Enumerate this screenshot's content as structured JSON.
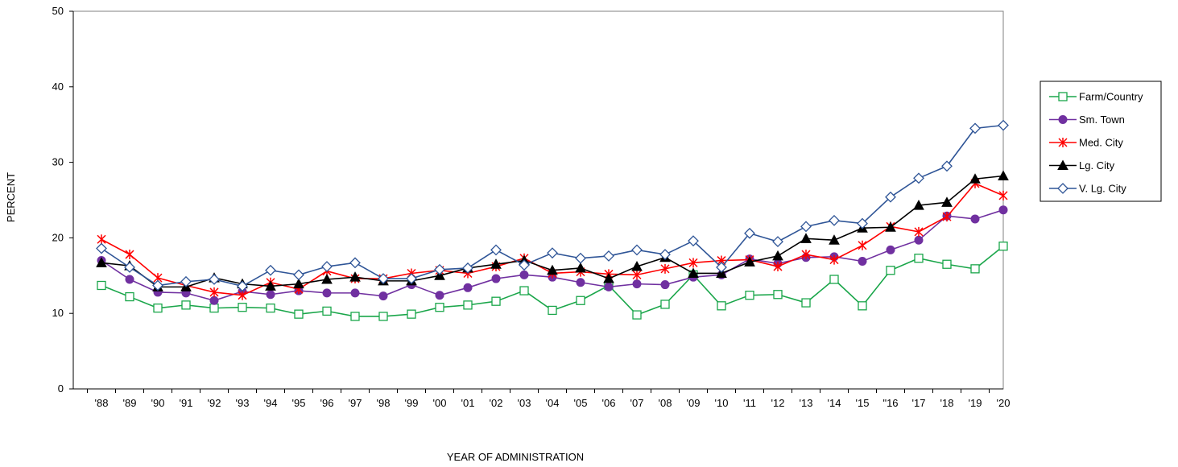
{
  "chart_data": {
    "type": "line",
    "title": "",
    "xlabel": "YEAR OF ADMINISTRATION",
    "ylabel": "PERCENT",
    "ylim": [
      0,
      50
    ],
    "yticks": [
      0,
      10,
      20,
      30,
      40,
      50
    ],
    "grid": false,
    "legend_position": "right",
    "categories": [
      "'88",
      "'89",
      "'90",
      "'91",
      "'92",
      "'93",
      "'94",
      "'95",
      "'96",
      "'97",
      "'98",
      "'99",
      "'00",
      "'01",
      "'02",
      "'03",
      "'04",
      "'05",
      "'06",
      "'07",
      "'08",
      "'09",
      "'10",
      "'11",
      "'12",
      "'13",
      "'14",
      "'15",
      "\"16",
      "'17",
      "'18",
      "'19",
      "'20"
    ],
    "series": [
      {
        "name": "Farm/Country",
        "color": "#1aa64a",
        "marker": "square-open",
        "values": [
          13.7,
          12.2,
          10.7,
          11.1,
          10.7,
          10.8,
          10.7,
          9.9,
          10.3,
          9.6,
          9.6,
          9.9,
          10.8,
          11.1,
          11.6,
          13.0,
          10.4,
          11.7,
          13.7,
          9.8,
          11.2,
          15.1,
          11.0,
          12.4,
          12.5,
          11.4,
          14.5,
          11.0,
          15.7,
          17.3,
          16.5,
          15.9,
          18.9
        ]
      },
      {
        "name": "Sm. Town",
        "color": "#7030a0",
        "marker": "circle-filled",
        "values": [
          17.0,
          14.5,
          12.8,
          12.7,
          11.7,
          12.9,
          12.5,
          13.0,
          12.7,
          12.7,
          12.3,
          13.8,
          12.4,
          13.4,
          14.6,
          15.1,
          14.8,
          14.1,
          13.5,
          13.9,
          13.8,
          14.8,
          15.1,
          17.2,
          16.6,
          17.4,
          17.5,
          16.9,
          18.4,
          19.7,
          22.9,
          22.5,
          23.7
        ]
      },
      {
        "name": "Med. City",
        "color": "#ff0000",
        "marker": "star",
        "values": [
          19.8,
          17.8,
          14.7,
          13.7,
          12.8,
          12.4,
          14.1,
          13.2,
          15.6,
          14.6,
          14.6,
          15.3,
          15.7,
          15.3,
          16.2,
          17.3,
          15.3,
          15.5,
          15.2,
          15.1,
          15.9,
          16.7,
          17.0,
          17.1,
          16.2,
          17.8,
          17.1,
          19.0,
          21.5,
          20.8,
          22.8,
          27.2,
          25.6
        ]
      },
      {
        "name": "Lg. City",
        "color": "#000000",
        "marker": "triangle-filled",
        "values": [
          16.7,
          16.3,
          13.5,
          13.5,
          14.7,
          13.9,
          13.6,
          13.9,
          14.5,
          14.8,
          14.3,
          14.3,
          15.0,
          16.0,
          16.5,
          17.0,
          15.7,
          16.0,
          14.6,
          16.2,
          17.4,
          15.3,
          15.3,
          16.8,
          17.6,
          19.9,
          19.7,
          21.3,
          21.4,
          24.3,
          24.7,
          27.8,
          28.2
        ]
      },
      {
        "name": "V. Lg. City",
        "color": "#2f5597",
        "marker": "diamond-open",
        "values": [
          18.6,
          16.1,
          13.7,
          14.2,
          14.5,
          13.6,
          15.7,
          15.1,
          16.2,
          16.7,
          14.6,
          14.6,
          15.8,
          16.0,
          18.4,
          16.4,
          18.0,
          17.3,
          17.6,
          18.4,
          17.8,
          19.6,
          16.1,
          20.6,
          19.5,
          21.5,
          22.3,
          21.9,
          25.4,
          27.9,
          29.5,
          34.5,
          34.9
        ]
      }
    ]
  }
}
